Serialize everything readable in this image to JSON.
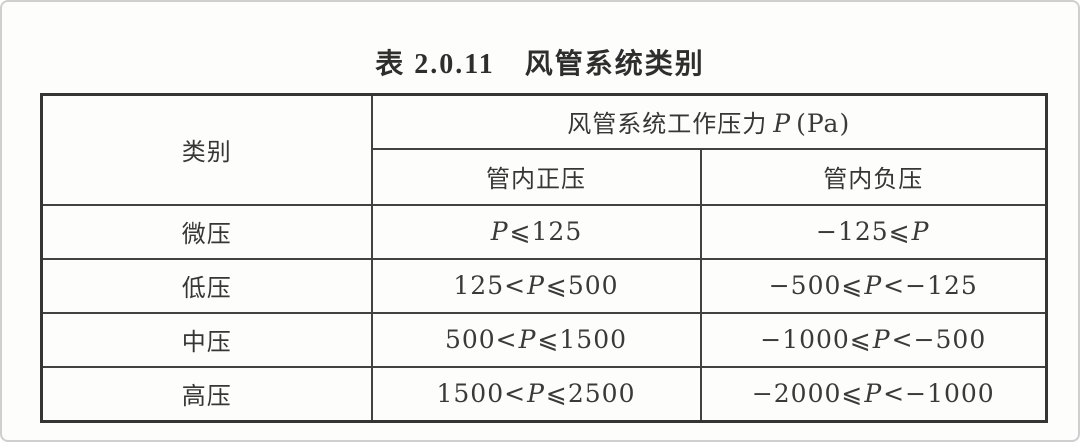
{
  "page": {
    "title": "表 2.0.11　风管系统类别"
  },
  "table": {
    "header": {
      "category_label": "类别",
      "pressure_prefix": "风管系统工作压力",
      "pressure_symbol": "P",
      "pressure_unit": "(Pa)",
      "positive_label": "管内正压",
      "negative_label": "管内负压"
    },
    "rows": [
      {
        "category": "微压",
        "positive": "P⩽125",
        "negative": "−125⩽P"
      },
      {
        "category": "低压",
        "positive": "125<P⩽500",
        "negative": "−500⩽P<−125"
      },
      {
        "category": "中压",
        "positive": "500<P⩽1500",
        "negative": "−1000⩽P<−500"
      },
      {
        "category": "高压",
        "positive": "1500<P⩽2500",
        "negative": "−2000⩽P<−1000"
      }
    ]
  }
}
